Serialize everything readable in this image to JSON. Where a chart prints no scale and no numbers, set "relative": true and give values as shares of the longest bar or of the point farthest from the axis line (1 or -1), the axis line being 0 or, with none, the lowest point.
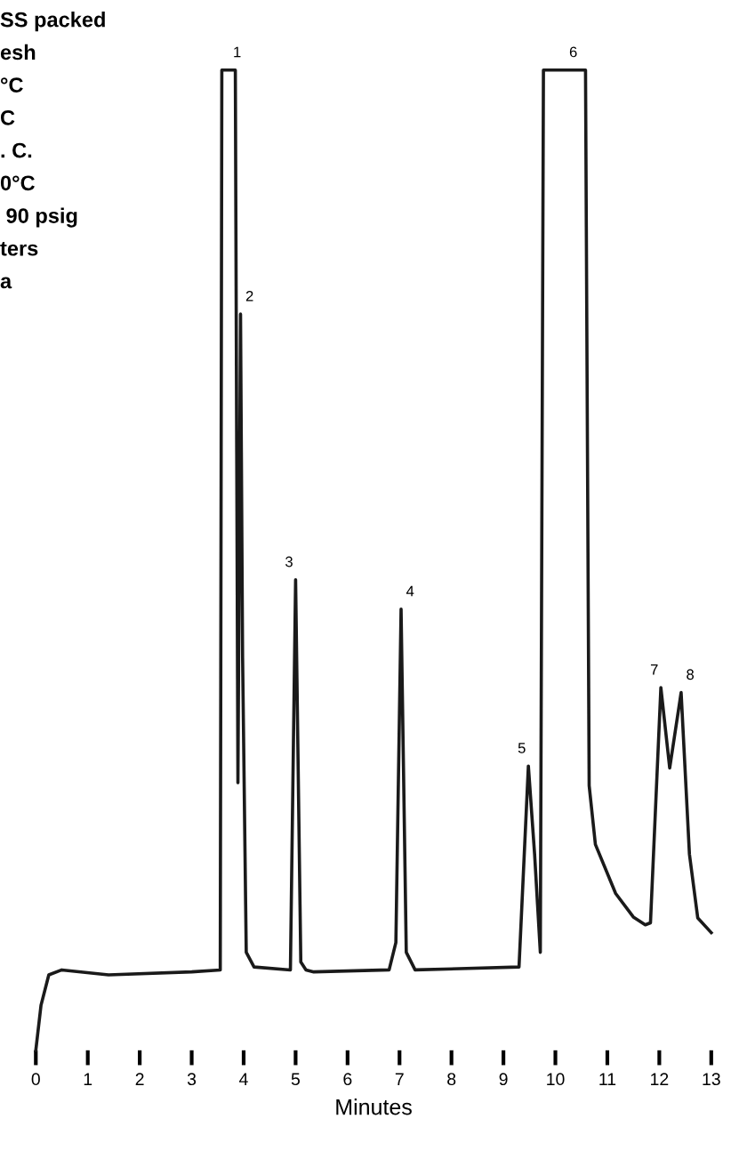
{
  "chart_data": {
    "type": "line",
    "xlabel": "Minutes",
    "relative": true,
    "x": [
      0,
      0.1,
      0.25,
      0.5,
      1.4,
      3.0,
      3.55,
      3.58,
      3.84,
      3.89,
      3.94,
      3.98,
      4.05,
      4.2,
      4.9,
      5.0,
      5.1,
      5.2,
      5.35,
      6.8,
      6.93,
      7.03,
      7.13,
      7.3,
      9.3,
      9.48,
      9.6,
      9.71,
      9.77,
      10.58,
      10.65,
      10.77,
      11.16,
      11.5,
      11.73,
      11.83,
      12.03,
      12.2,
      12.42,
      12.58,
      12.74,
      13.0
    ],
    "series": [
      {
        "color": "#1a1a1a",
        "values": [
          0,
          0.046,
          0.077,
          0.082,
          0.077,
          0.08,
          0.082,
          1,
          1,
          0.273,
          0.751,
          0.4,
          0.1,
          0.085,
          0.082,
          0.48,
          0.09,
          0.082,
          0.08,
          0.082,
          0.11,
          0.45,
          0.1,
          0.082,
          0.085,
          0.29,
          0.2,
          0.1,
          1,
          1,
          0.27,
          0.21,
          0.16,
          0.136,
          0.128,
          0.13,
          0.37,
          0.288,
          0.365,
          0.2,
          0.135,
          0.12
        ]
      }
    ],
    "xlim": [
      0,
      13
    ],
    "xticks": [
      0,
      1,
      2,
      3,
      4,
      5,
      6,
      7,
      8,
      9,
      10,
      11,
      12,
      13
    ],
    "annotations": [
      {
        "text": "1",
        "x": 3.7,
        "y": 1
      },
      {
        "text": "2",
        "x": 3.94,
        "y": 0.751
      },
      {
        "text": "3",
        "x": 5.0,
        "y": 0.48
      },
      {
        "text": "4",
        "x": 7.03,
        "y": 0.45
      },
      {
        "text": "5",
        "x": 9.48,
        "y": 0.29
      },
      {
        "text": "6",
        "x": 10.17,
        "y": 1
      },
      {
        "text": "7",
        "x": 12.03,
        "y": 0.37
      },
      {
        "text": "8",
        "x": 12.42,
        "y": 0.365
      },
      "SS packed",
      "esh",
      "°C",
      "C",
      ". C.",
      "0°C",
      " 90 psig",
      "ters",
      "a"
    ]
  }
}
